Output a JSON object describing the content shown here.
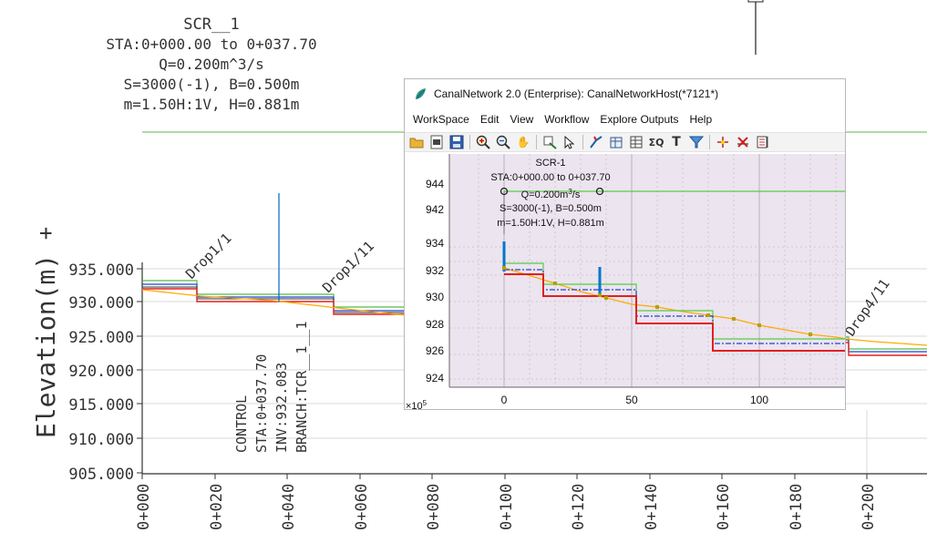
{
  "cad": {
    "block_title": "SCR__1",
    "block_sta": "STA:0+000.00 to 0+037.70",
    "block_q": "Q=0.200m^3/s",
    "block_sb": "S=3000(-1), B=0.500m",
    "block_mh": "m=1.50H:1V, H=0.881m",
    "y_axis_title": "Elevation(m)",
    "y_axis_plus": "+",
    "y_ticks": [
      "935.000",
      "930.000",
      "925.000",
      "920.000",
      "915.000",
      "910.000",
      "905.000"
    ],
    "x_ticks": [
      "0+000",
      "0+020",
      "0+040",
      "0+060",
      "0+080",
      "0+100",
      "0+120",
      "0+140",
      "0+160",
      "0+180",
      "0+200"
    ],
    "drop_labels": [
      "Drop1/1",
      "Drop1/11",
      "Drop4/11"
    ],
    "control_lines": [
      "CONTROL",
      "STA:0+037.70",
      "INV:932.083",
      "BRANCH:TCR__1__1"
    ],
    "colors": {
      "green": "#55bb44",
      "blue": "#2244cc",
      "red": "#e02020",
      "orange": "#ffaa00",
      "marker": "#0066cc"
    }
  },
  "window": {
    "title": "CanalNetwork 2.0  (Enterprise): CanalNetworkHost(*7121*)",
    "menu": [
      "WorkSpace",
      "Edit",
      "View",
      "Workflow",
      "Explore Outputs",
      "Help"
    ],
    "toolbar_icons": [
      "open-folder-icon",
      "print-preview-icon",
      "save-icon",
      "zoom-in-icon",
      "zoom-out-icon",
      "pan-hand-icon",
      "add-node-icon",
      "select-pointer-icon",
      "split-line-icon",
      "grid-edit-icon",
      "table-icon",
      "sum-icon",
      "text-tool-icon",
      "filter-icon",
      "node-add-icon",
      "node-delete-icon",
      "chart-export-icon"
    ]
  },
  "plot": {
    "label_title": "SCR-1",
    "label_sta": "STA:0+000.00 to 0+037.70",
    "label_q": "Q=0.200m",
    "label_q_sup": "3",
    "label_q_unit": "/s",
    "label_sb": "S=3000(-1), B=0.500m",
    "label_mh": "m=1.50H:1V, H=0.881m",
    "y_ticks": [
      "944",
      "942",
      "934",
      "932",
      "930",
      "928",
      "926",
      "924"
    ],
    "x_ticks": [
      "0",
      "50",
      "100"
    ],
    "x_exponent_prefix": "×10",
    "x_exponent": "5",
    "background": "#ece4ef"
  }
}
